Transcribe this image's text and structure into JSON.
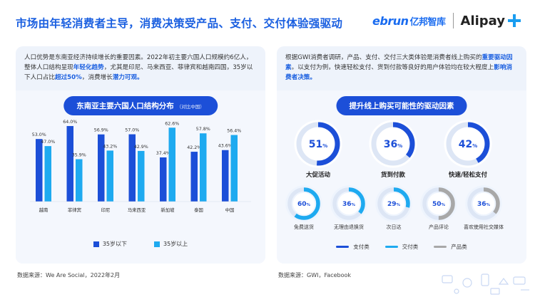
{
  "header": {
    "title": "市场由年轻消费者主导，消费决策受产品、支付、交付体验强驱动",
    "logo_ebrun": "ebrun",
    "logo_ebrun_cn": "亿邦智库",
    "logo_alipay": "Alipay"
  },
  "left": {
    "desc_parts": [
      {
        "t": "人口优势是东南亚经济持续增长的重要因素。2022年初主要六国人口规模约6亿人，整体人口结构呈现",
        "hl": false
      },
      {
        "t": "年轻化趋势",
        "hl": true
      },
      {
        "t": "，尤其是印尼、马来西亚、菲律宾和越南四国，35岁以下人口占比",
        "hl": false
      },
      {
        "t": "超过50%",
        "hl": true
      },
      {
        "t": "，消费增长",
        "hl": false
      },
      {
        "t": "潜力可观。",
        "hl": true
      }
    ],
    "pill_title": "东南亚主要六国人口结构分布",
    "pill_sub": "（对比中国）",
    "source": "数据来源：We Are Social，2022年2月"
  },
  "right": {
    "desc_parts": [
      {
        "t": "根据GWI消费者调研，产品、支付、交付三大类体验是消费者线上购买的",
        "hl": false
      },
      {
        "t": "重要驱动因素",
        "hl": true
      },
      {
        "t": "。以支付为例，快速轻松支付、货到付款等良好的用户体验均在较大程度上",
        "hl": false
      },
      {
        "t": "影响消费者决策。",
        "hl": true
      }
    ],
    "pill_title": "提升线上购买可能性的驱动因素",
    "source": "数据来源：GWI，Facebook",
    "legend": [
      {
        "label": "支付类",
        "color": "#1c4fd8"
      },
      {
        "label": "交付类",
        "color": "#1eaaf0"
      },
      {
        "label": "产品类",
        "color": "#a8a8a8"
      }
    ]
  },
  "chart_data": [
    {
      "type": "bar",
      "title": "东南亚主要六国人口结构分布",
      "categories": [
        "越南",
        "菲律宾",
        "印尼",
        "马来西亚",
        "新加坡",
        "泰国",
        "中国"
      ],
      "series": [
        {
          "name": "35岁以下",
          "color": "#1c4fd8",
          "values": [
            53.0,
            64.0,
            56.9,
            57.0,
            37.4,
            42.2,
            43.6
          ]
        },
        {
          "name": "35岁以上",
          "color": "#1eaaf0",
          "values": [
            47.0,
            35.9,
            43.2,
            42.9,
            62.6,
            57.8,
            56.4
          ]
        }
      ],
      "value_format": "%",
      "ylim": [
        0,
        70
      ],
      "grid": false,
      "legend": "bottom"
    },
    {
      "type": "pie",
      "title": "提升线上购买可能性的驱动因素",
      "items": [
        {
          "label": "大促活动",
          "value": 51,
          "category": "支付类",
          "color": "#1c4fd8",
          "size": "large"
        },
        {
          "label": "货到付款",
          "value": 36,
          "category": "支付类",
          "color": "#1c4fd8",
          "size": "large"
        },
        {
          "label": "快速/轻松支付",
          "value": 42,
          "category": "支付类",
          "color": "#1c4fd8",
          "size": "large"
        },
        {
          "label": "免费送货",
          "value": 60,
          "category": "交付类",
          "color": "#1eaaf0",
          "size": "small"
        },
        {
          "label": "无理由退换货",
          "value": 36,
          "category": "交付类",
          "color": "#1eaaf0",
          "size": "small"
        },
        {
          "label": "次日达",
          "value": 29,
          "category": "交付类",
          "color": "#1eaaf0",
          "size": "small"
        },
        {
          "label": "产品评论",
          "value": 50,
          "category": "产品类",
          "color": "#a8a8a8",
          "size": "small"
        },
        {
          "label": "喜欢使用社交媒体",
          "value": 36,
          "category": "产品类",
          "color": "#a8a8a8",
          "size": "small"
        }
      ],
      "legend": "bottom"
    }
  ]
}
